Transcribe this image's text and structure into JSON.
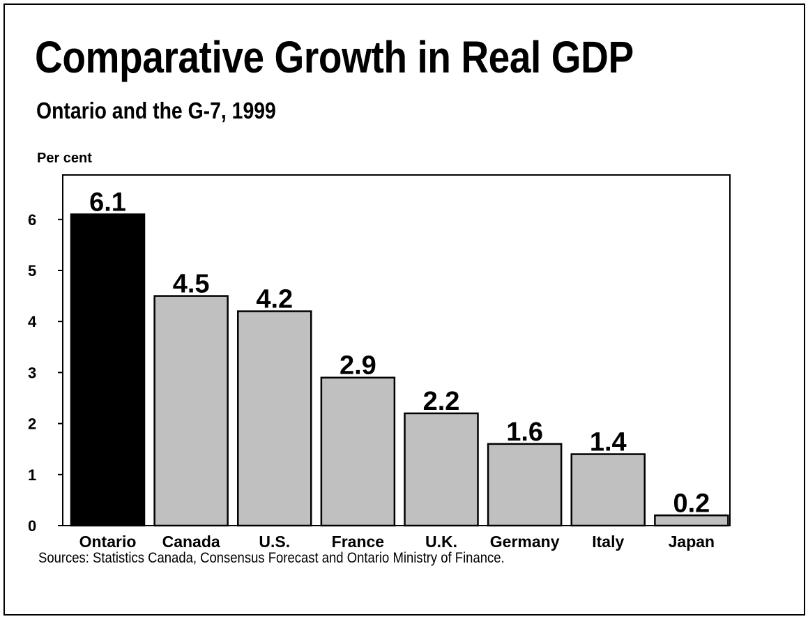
{
  "page": {
    "title": "Comparative Growth in Real GDP",
    "subtitle": "Ontario and the G-7, 1999",
    "source": "Sources:  Statistics Canada, Consensus Forecast and Ontario Ministry of Finance."
  },
  "chart_data": {
    "type": "bar",
    "title": "Comparative Growth in Real GDP",
    "subtitle": "Ontario and the G-7, 1999",
    "xlabel": "",
    "ylabel": "Per cent",
    "categories": [
      "Ontario",
      "Canada",
      "U.S.",
      "France",
      "U.K.",
      "Germany",
      "Italy",
      "Japan"
    ],
    "values": [
      6.1,
      4.5,
      4.2,
      2.9,
      2.2,
      1.6,
      1.4,
      0.2
    ],
    "data_labels": [
      "6.1",
      "4.5",
      "4.2",
      "2.9",
      "2.2",
      "1.6",
      "1.4",
      "0.2"
    ],
    "highlight_category": "Ontario",
    "colors": {
      "highlight": "#000000",
      "default": "#c0c0c0",
      "outline": "#000000"
    },
    "ylim": [
      0,
      6.5
    ],
    "yticks": [
      0,
      1,
      2,
      3,
      4,
      5,
      6
    ],
    "grid": false,
    "legend": "none"
  }
}
